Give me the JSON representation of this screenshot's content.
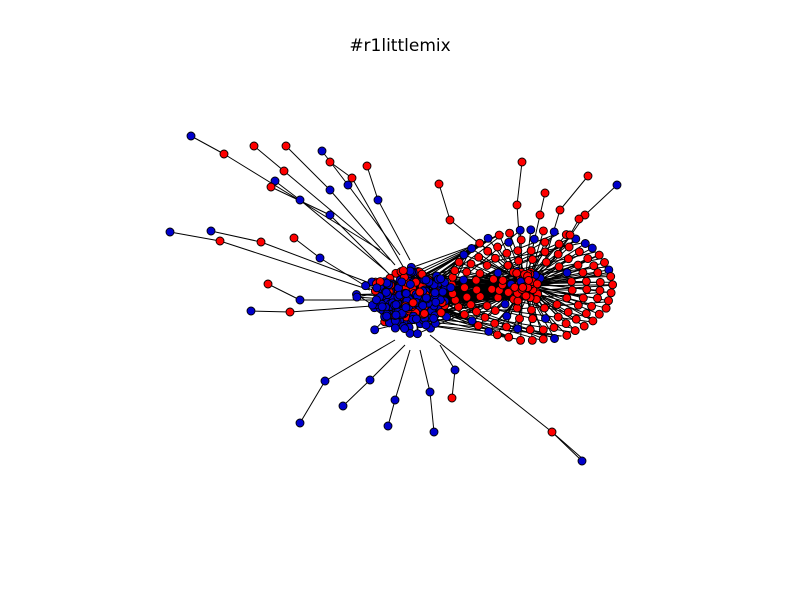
{
  "figure": {
    "title": "#r1littlemix"
  },
  "colors": {
    "background": "#ffffff",
    "node_red": "#ff0000",
    "node_blue": "#0000cc",
    "node_outline": "#000000",
    "edge": "#000000"
  },
  "graph": {
    "type": "network",
    "node_color_groups": [
      "red",
      "blue"
    ]
  }
}
